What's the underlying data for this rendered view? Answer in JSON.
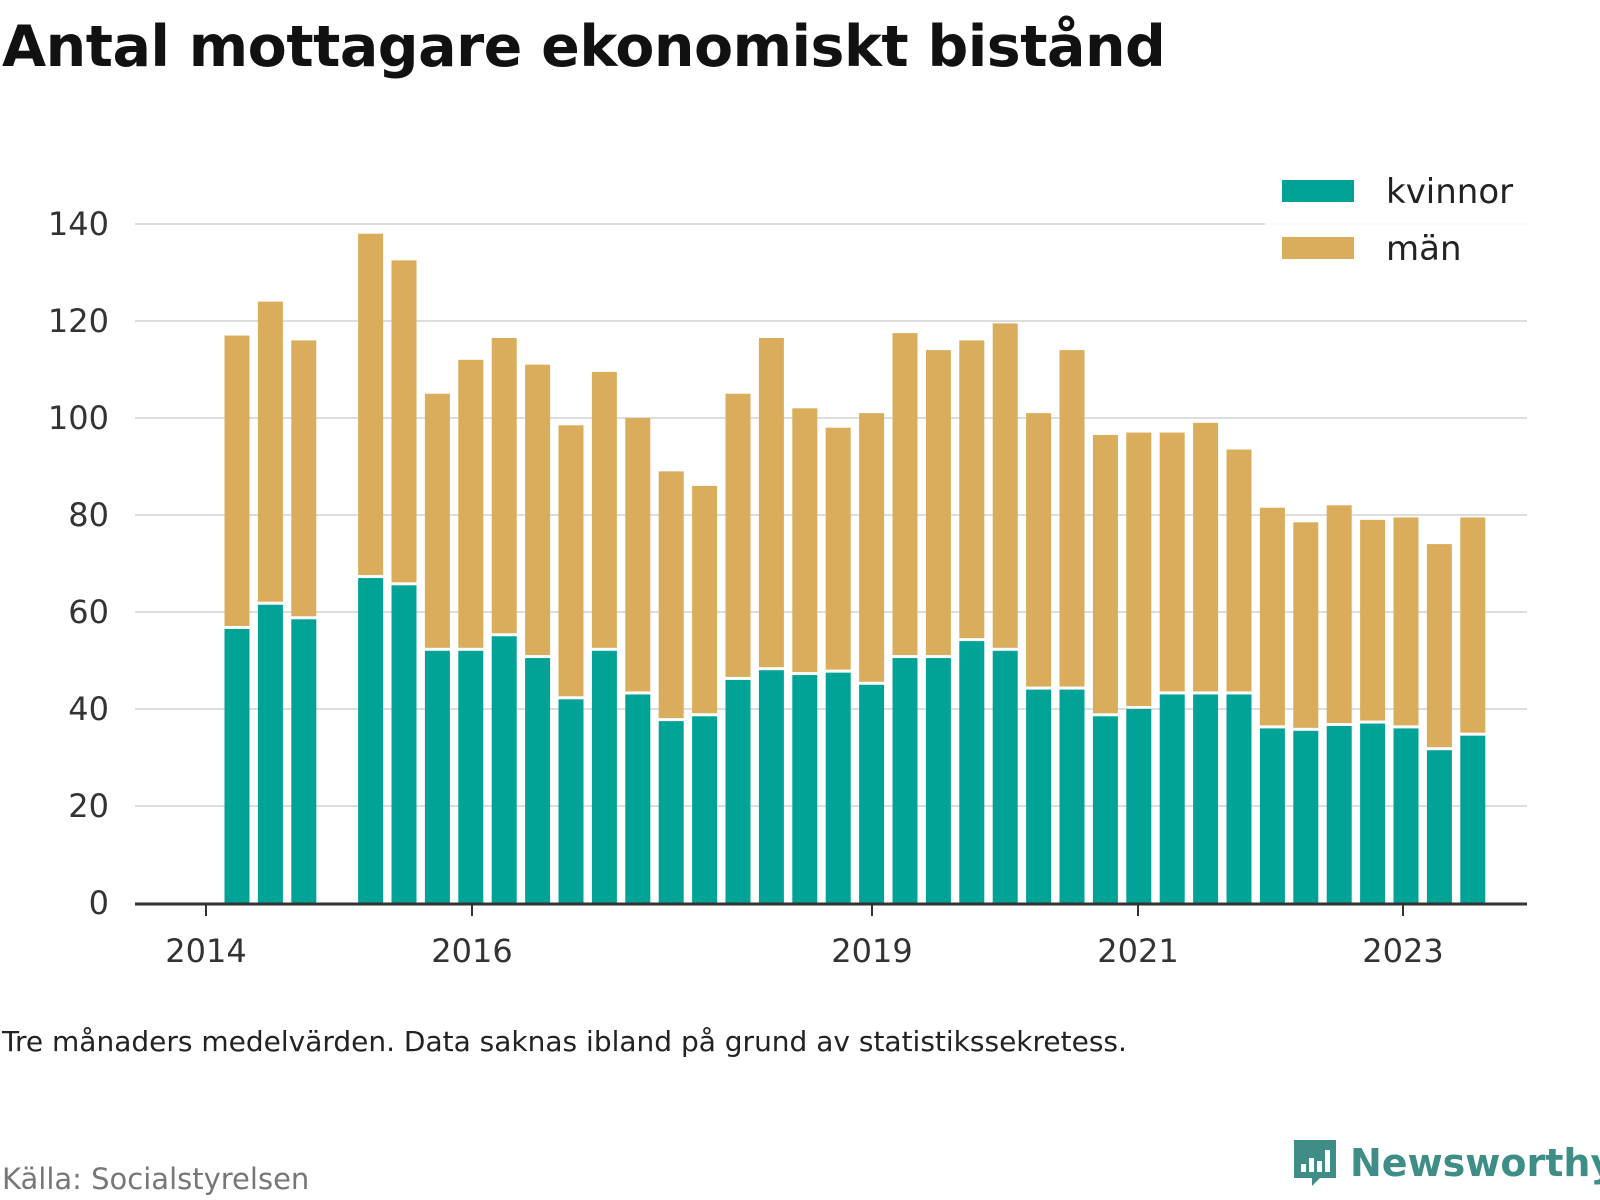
{
  "title": "Antal mottagare ekonomiskt bistånd",
  "note": "Tre månaders medelvärden. Data saknas ibland på grund av statistikssekretess.",
  "source": "Källa: Socialstyrelsen",
  "brand": {
    "name": "Newsworthy",
    "color": "#3e8d87"
  },
  "colors": {
    "kvinnor": "#00a396",
    "man": "#d9ad5b",
    "grid": "#dddddd",
    "axis": "#333333"
  },
  "chart_data": {
    "type": "bar",
    "stacked": true,
    "legend_position": "top-right",
    "grid": true,
    "ylim": [
      0,
      140
    ],
    "y_ticks": [
      0,
      20,
      40,
      60,
      80,
      100,
      120,
      140
    ],
    "x_tick_labels": [
      "2014",
      "2016",
      "2019",
      "2021",
      "2023"
    ],
    "series": [
      {
        "name": "kvinnor",
        "values": [
          56.5,
          61.5,
          58.5,
          67,
          65.5,
          52,
          52,
          55,
          50.5,
          42,
          52,
          43,
          37.5,
          38.5,
          46,
          48,
          47,
          47.5,
          45,
          50.5,
          50.5,
          54,
          52,
          44,
          44,
          38.5,
          40,
          43,
          43,
          43,
          36,
          35.5,
          36.5,
          37,
          36,
          31.5,
          34.5
        ]
      },
      {
        "name": "män",
        "values": [
          60.5,
          62.5,
          57.5,
          71,
          67,
          53,
          60,
          61.5,
          60.5,
          56.5,
          57.5,
          57,
          51.5,
          47.5,
          59,
          68.5,
          55,
          50.5,
          56,
          67,
          63.5,
          62,
          67.5,
          57,
          70,
          58,
          57,
          54,
          56,
          50.5,
          45.5,
          43,
          45.5,
          42,
          43.5,
          42.5,
          45
        ]
      }
    ]
  }
}
